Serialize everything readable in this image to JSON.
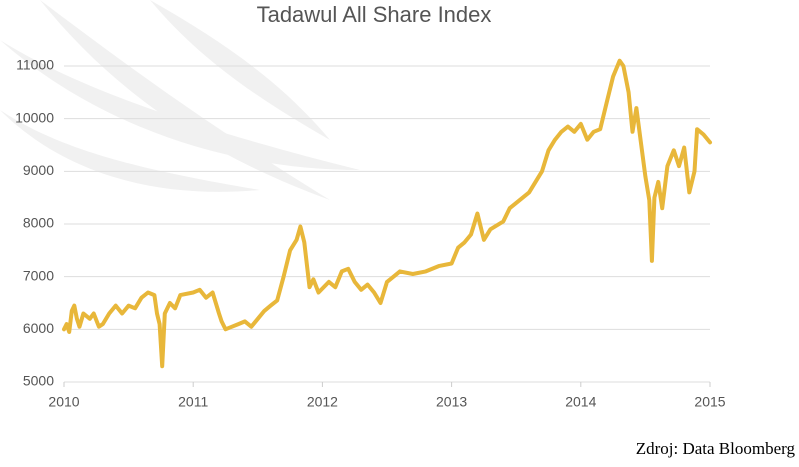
{
  "chart_data": {
    "type": "line",
    "title": "Tadawul All Share Index",
    "source": "Zdroj: Data Bloomberg",
    "xlim": [
      2010,
      2015
    ],
    "xticks": [
      2010,
      2011,
      2012,
      2013,
      2014,
      2015
    ],
    "ylim": [
      5000,
      11000
    ],
    "yticks": [
      5000,
      6000,
      7000,
      8000,
      9000,
      10000,
      11000
    ],
    "grid": true,
    "series": [
      {
        "name": "Tadawul All Share Index",
        "color": "#e8b73a",
        "x": [
          2010.0,
          2010.02,
          2010.04,
          2010.06,
          2010.08,
          2010.1,
          2010.12,
          2010.15,
          2010.2,
          2010.23,
          2010.27,
          2010.3,
          2010.35,
          2010.4,
          2010.45,
          2010.5,
          2010.55,
          2010.6,
          2010.65,
          2010.7,
          2010.72,
          2010.74,
          2010.76,
          2010.78,
          2010.82,
          2010.86,
          2010.9,
          2011.0,
          2011.05,
          2011.1,
          2011.15,
          2011.2,
          2011.22,
          2011.25,
          2011.3,
          2011.35,
          2011.4,
          2011.45,
          2011.5,
          2011.55,
          2011.6,
          2011.65,
          2011.7,
          2011.75,
          2011.8,
          2011.83,
          2011.86,
          2011.9,
          2011.93,
          2011.97,
          2012.05,
          2012.1,
          2012.15,
          2012.2,
          2012.25,
          2012.3,
          2012.35,
          2012.4,
          2012.45,
          2012.5,
          2012.55,
          2012.6,
          2012.7,
          2012.8,
          2012.9,
          2013.0,
          2013.05,
          2013.1,
          2013.15,
          2013.2,
          2013.25,
          2013.3,
          2013.4,
          2013.45,
          2013.5,
          2013.6,
          2013.7,
          2013.75,
          2013.8,
          2013.85,
          2013.9,
          2013.95,
          2014.0,
          2014.05,
          2014.1,
          2014.15,
          2014.2,
          2014.25,
          2014.3,
          2014.33,
          2014.37,
          2014.4,
          2014.43,
          2014.46,
          2014.5,
          2014.53,
          2014.55,
          2014.57,
          2014.6,
          2014.63,
          2014.67,
          2014.72,
          2014.76,
          2014.8,
          2014.84,
          2014.88,
          2014.9,
          2014.95,
          2015.0
        ],
        "values": [
          6000,
          6100,
          5950,
          6350,
          6450,
          6200,
          6050,
          6300,
          6200,
          6300,
          6050,
          6100,
          6300,
          6450,
          6300,
          6450,
          6400,
          6600,
          6700,
          6650,
          6300,
          6100,
          5300,
          6300,
          6500,
          6400,
          6650,
          6700,
          6750,
          6600,
          6700,
          6300,
          6150,
          6000,
          6050,
          6100,
          6150,
          6050,
          6200,
          6350,
          6450,
          6550,
          7000,
          7500,
          7700,
          7950,
          7650,
          6800,
          6950,
          6700,
          6900,
          6800,
          7100,
          7150,
          6900,
          6750,
          6850,
          6700,
          6500,
          6900,
          7000,
          7100,
          7050,
          7100,
          7200,
          7250,
          7550,
          7650,
          7800,
          8200,
          7700,
          7900,
          8050,
          8300,
          8400,
          8600,
          9000,
          9400,
          9600,
          9750,
          9850,
          9750,
          9900,
          9600,
          9750,
          9800,
          10300,
          10800,
          11100,
          11000,
          10500,
          9750,
          10200,
          9650,
          8900,
          8450,
          7300,
          8500,
          8800,
          8300,
          9100,
          9400,
          9100,
          9450,
          8600,
          9000,
          9800,
          9700,
          9550
        ]
      }
    ]
  }
}
